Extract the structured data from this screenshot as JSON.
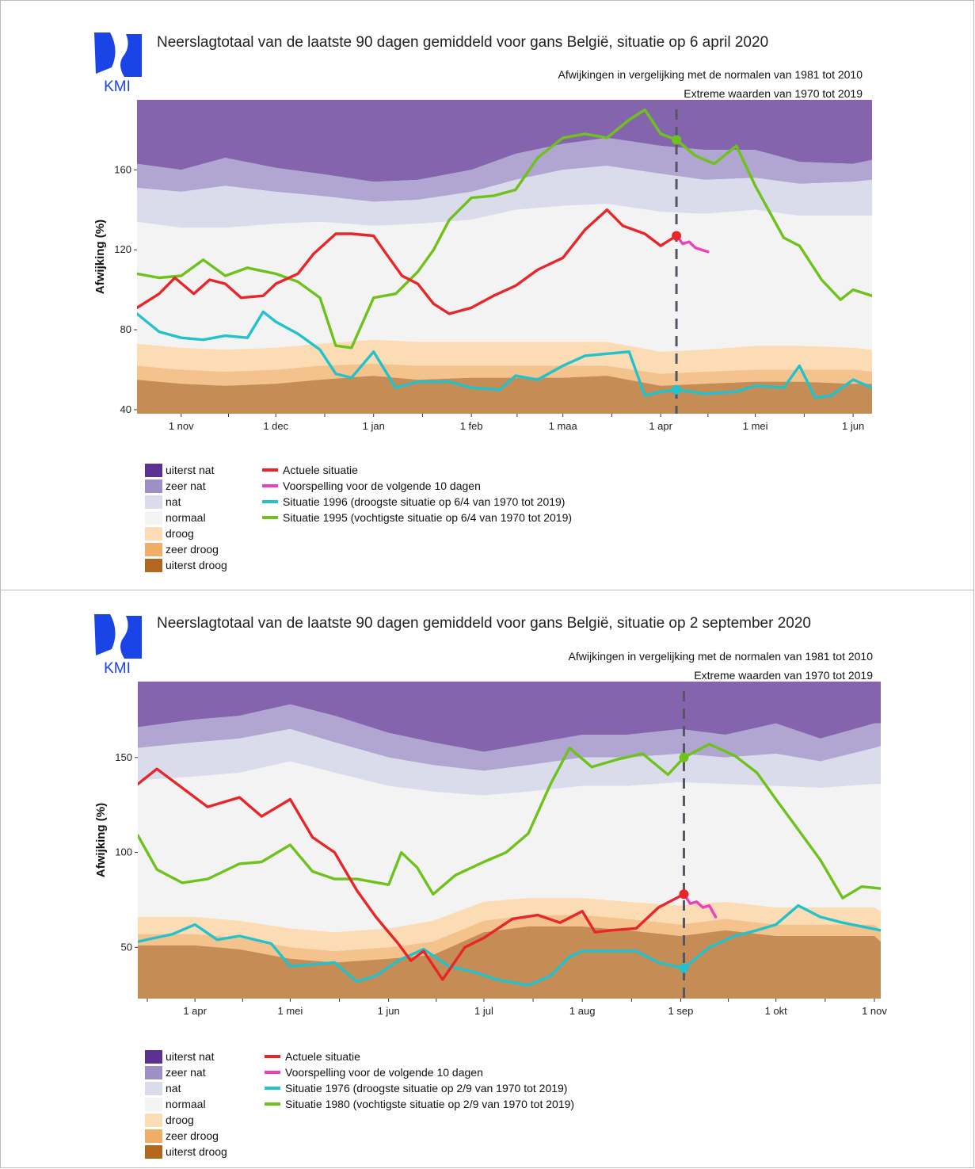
{
  "logo_text": "KMI",
  "colors": {
    "uiterst_nat": "#5b3192",
    "zeer_nat": "#9e8fc7",
    "nat": "#dadcec",
    "normaal": "#f3f3f3",
    "droog": "#fbdcb5",
    "zeer_droog": "#efad67",
    "uiterst_droog": "#b3661e",
    "actueel": "#e8262a",
    "voorspelling": "#ef3fbd",
    "droogste": "#21c2cc",
    "vochtigste": "#6ec21b",
    "today_line": "#555566"
  },
  "chart_data": [
    {
      "type": "line",
      "title": "Neerslagtotaal van de laatste 90 dagen gemiddeld voor gans België, situatie op 6 april 2020",
      "subtitle1": "Afwijkingen in vergelijking met de normalen van 1981 tot 2010",
      "subtitle2": "Extreme waarden van 1970 tot 2019",
      "ylabel": "Afwijking (%)",
      "xlabel": "",
      "ylim": [
        38,
        195
      ],
      "xlim": [
        "2019-10-18",
        "2020-06-07"
      ],
      "yticks": [
        40,
        80,
        120,
        160
      ],
      "xticks": [
        {
          "date": "2019-11-01",
          "label": "1 nov"
        },
        {
          "date": "2019-12-01",
          "label": "1 dec"
        },
        {
          "date": "2020-01-01",
          "label": "1 jan"
        },
        {
          "date": "2020-02-01",
          "label": "1 feb"
        },
        {
          "date": "2020-03-01",
          "label": "1 maa"
        },
        {
          "date": "2020-04-01",
          "label": "1 apr"
        },
        {
          "date": "2020-05-01",
          "label": "1 mei"
        },
        {
          "date": "2020-06-01",
          "label": "1 jun"
        }
      ],
      "today": "2020-04-06",
      "bands": {
        "x": [
          "2019-10-18",
          "2019-11-01",
          "2019-11-15",
          "2019-12-01",
          "2019-12-15",
          "2020-01-01",
          "2020-01-15",
          "2020-02-01",
          "2020-02-15",
          "2020-03-01",
          "2020-03-15",
          "2020-04-01",
          "2020-04-15",
          "2020-05-01",
          "2020-05-15",
          "2020-06-01",
          "2020-06-07"
        ],
        "droog_low": [
          55,
          53,
          52,
          53,
          55,
          57,
          55,
          56,
          56,
          56,
          57,
          52,
          53,
          54,
          54,
          53,
          53
        ],
        "zeer_droog_low": [
          62,
          60,
          59,
          60,
          62,
          63,
          62,
          62,
          62,
          62,
          62,
          58,
          59,
          60,
          60,
          60,
          59
        ],
        "droog_high": [
          73,
          71,
          70,
          71,
          73,
          75,
          74,
          74,
          74,
          74,
          74,
          69,
          70,
          72,
          72,
          71,
          70
        ],
        "normaal_high": [
          134,
          131,
          131,
          133,
          134,
          132,
          133,
          135,
          140,
          142,
          143,
          139,
          138,
          140,
          137,
          137,
          137
        ],
        "nat_high": [
          151,
          149,
          152,
          149,
          147,
          144,
          145,
          149,
          155,
          160,
          162,
          158,
          155,
          156,
          153,
          154,
          155
        ],
        "zeer_nat_high": [
          163,
          160,
          166,
          161,
          158,
          154,
          155,
          160,
          168,
          173,
          176,
          172,
          170,
          170,
          164,
          163,
          165
        ]
      },
      "series": [
        {
          "name": "Situatie 1996 (droogste situatie op 6/4 van 1970 tot 2019)",
          "role": "droogste",
          "x": [
            "2019-10-18",
            "2019-10-25",
            "2019-11-01",
            "2019-11-08",
            "2019-11-15",
            "2019-11-22",
            "2019-11-27",
            "2019-12-01",
            "2019-12-08",
            "2019-12-15",
            "2019-12-20",
            "2019-12-25",
            "2020-01-01",
            "2020-01-08",
            "2020-01-15",
            "2020-01-25",
            "2020-02-01",
            "2020-02-10",
            "2020-02-15",
            "2020-02-22",
            "2020-03-01",
            "2020-03-08",
            "2020-03-15",
            "2020-03-22",
            "2020-03-27",
            "2020-04-01",
            "2020-04-06",
            "2020-04-15",
            "2020-04-25",
            "2020-05-01",
            "2020-05-10",
            "2020-05-15",
            "2020-05-20",
            "2020-05-25",
            "2020-06-01",
            "2020-06-07"
          ],
          "y": [
            88,
            79,
            76,
            75,
            77,
            76,
            89,
            84,
            78,
            70,
            58,
            56,
            69,
            51,
            54,
            54,
            51,
            50,
            57,
            55,
            62,
            67,
            68,
            69,
            47,
            49,
            50,
            48,
            49,
            52,
            51,
            62,
            46,
            47,
            55,
            51
          ]
        },
        {
          "name": "Situatie 1995 (vochtigste situatie op 6/4 van 1970 tot 2019)",
          "role": "vochtigste",
          "x": [
            "2019-10-18",
            "2019-10-25",
            "2019-11-01",
            "2019-11-08",
            "2019-11-15",
            "2019-11-22",
            "2019-12-01",
            "2019-12-08",
            "2019-12-15",
            "2019-12-20",
            "2019-12-25",
            "2020-01-01",
            "2020-01-08",
            "2020-01-15",
            "2020-01-20",
            "2020-01-25",
            "2020-02-01",
            "2020-02-08",
            "2020-02-15",
            "2020-02-22",
            "2020-03-01",
            "2020-03-08",
            "2020-03-15",
            "2020-03-22",
            "2020-03-27",
            "2020-04-01",
            "2020-04-06",
            "2020-04-12",
            "2020-04-18",
            "2020-04-25",
            "2020-05-01",
            "2020-05-10",
            "2020-05-15",
            "2020-05-22",
            "2020-05-28",
            "2020-06-01",
            "2020-06-07"
          ],
          "y": [
            108,
            106,
            107,
            115,
            107,
            111,
            108,
            104,
            96,
            72,
            71,
            96,
            98,
            109,
            120,
            135,
            146,
            147,
            150,
            166,
            176,
            178,
            176,
            185,
            190,
            178,
            175,
            167,
            163,
            172,
            152,
            126,
            122,
            105,
            95,
            100,
            97
          ]
        },
        {
          "name": "Actuele situatie",
          "role": "actueel",
          "x": [
            "2019-10-18",
            "2019-10-25",
            "2019-10-30",
            "2019-11-05",
            "2019-11-10",
            "2019-11-15",
            "2019-11-20",
            "2019-11-27",
            "2019-12-01",
            "2019-12-08",
            "2019-12-13",
            "2019-12-20",
            "2019-12-25",
            "2020-01-01",
            "2020-01-05",
            "2020-01-10",
            "2020-01-15",
            "2020-01-20",
            "2020-01-25",
            "2020-02-01",
            "2020-02-08",
            "2020-02-15",
            "2020-02-22",
            "2020-03-01",
            "2020-03-08",
            "2020-03-15",
            "2020-03-20",
            "2020-03-27",
            "2020-04-01",
            "2020-04-06"
          ],
          "y": [
            91,
            98,
            106,
            98,
            105,
            103,
            96,
            97,
            103,
            108,
            118,
            128,
            128,
            127,
            118,
            107,
            103,
            93,
            88,
            91,
            97,
            102,
            110,
            116,
            130,
            140,
            132,
            128,
            122,
            127
          ]
        },
        {
          "name": "Voorspelling voor de volgende 10 dagen",
          "role": "voorspelling",
          "x": [
            "2020-04-06",
            "2020-04-08",
            "2020-04-10",
            "2020-04-12",
            "2020-04-14",
            "2020-04-16"
          ],
          "y": [
            127,
            123,
            124,
            121,
            120,
            119
          ]
        }
      ]
    },
    {
      "type": "line",
      "title": "Neerslagtotaal van de laatste 90 dagen gemiddeld voor gans België, situatie op 2 september 2020",
      "subtitle1": "Afwijkingen in vergelijking met de normalen van 1981 tot 2010",
      "subtitle2": "Extreme waarden van 1970 tot 2019",
      "ylabel": "Afwijking (%)",
      "xlabel": "",
      "ylim": [
        23,
        190
      ],
      "xlim": [
        "2020-03-14",
        "2020-11-03"
      ],
      "yticks": [
        50,
        100,
        150
      ],
      "xticks": [
        {
          "date": "2020-04-01",
          "label": "1 apr"
        },
        {
          "date": "2020-05-01",
          "label": "1 mei"
        },
        {
          "date": "2020-06-01",
          "label": "1 jun"
        },
        {
          "date": "2020-07-01",
          "label": "1 jul"
        },
        {
          "date": "2020-08-01",
          "label": "1 aug"
        },
        {
          "date": "2020-09-01",
          "label": "1 sep"
        },
        {
          "date": "2020-10-01",
          "label": "1 okt"
        },
        {
          "date": "2020-11-01",
          "label": "1 nov"
        }
      ],
      "today": "2020-09-02",
      "bands": {
        "x": [
          "2020-03-14",
          "2020-04-01",
          "2020-04-15",
          "2020-05-01",
          "2020-05-15",
          "2020-06-01",
          "2020-06-15",
          "2020-07-01",
          "2020-07-15",
          "2020-08-01",
          "2020-08-15",
          "2020-09-01",
          "2020-09-15",
          "2020-10-01",
          "2020-10-15",
          "2020-11-01",
          "2020-11-03"
        ],
        "droog_low": [
          51,
          51,
          49,
          44,
          42,
          44,
          46,
          58,
          61,
          61,
          59,
          56,
          59,
          56,
          56,
          56,
          53
        ],
        "zeer_droog_low": [
          57,
          57,
          55,
          50,
          48,
          50,
          53,
          64,
          67,
          67,
          65,
          62,
          65,
          62,
          62,
          62,
          59
        ],
        "droog_high": [
          66,
          66,
          64,
          60,
          58,
          60,
          64,
          74,
          76,
          76,
          74,
          72,
          74,
          71,
          71,
          71,
          69
        ],
        "normaal_high": [
          138,
          140,
          142,
          148,
          142,
          135,
          132,
          130,
          132,
          135,
          135,
          137,
          136,
          135,
          134,
          136,
          136
        ],
        "nat_high": [
          155,
          158,
          160,
          165,
          158,
          150,
          146,
          143,
          146,
          150,
          150,
          152,
          150,
          152,
          148,
          155,
          156
        ],
        "zeer_nat_high": [
          166,
          170,
          172,
          178,
          172,
          163,
          158,
          153,
          157,
          162,
          162,
          165,
          162,
          168,
          160,
          168,
          168
        ]
      },
      "series": [
        {
          "name": "Situatie 1976 (droogste situatie op 2/9 van 1970 tot 2019)",
          "role": "droogste",
          "x": [
            "2020-03-14",
            "2020-03-25",
            "2020-04-01",
            "2020-04-08",
            "2020-04-15",
            "2020-04-25",
            "2020-05-01",
            "2020-05-08",
            "2020-05-15",
            "2020-05-22",
            "2020-05-28",
            "2020-06-04",
            "2020-06-12",
            "2020-06-20",
            "2020-06-28",
            "2020-07-05",
            "2020-07-15",
            "2020-07-22",
            "2020-07-28",
            "2020-08-01",
            "2020-08-10",
            "2020-08-18",
            "2020-08-25",
            "2020-09-02",
            "2020-09-10",
            "2020-09-18",
            "2020-09-25",
            "2020-10-01",
            "2020-10-08",
            "2020-10-15",
            "2020-10-22",
            "2020-11-03"
          ],
          "y": [
            53,
            57,
            62,
            54,
            56,
            52,
            40,
            41,
            42,
            32,
            35,
            43,
            49,
            40,
            37,
            33,
            30,
            35,
            45,
            48,
            48,
            48,
            42,
            39,
            50,
            56,
            59,
            62,
            72,
            66,
            63,
            59
          ]
        },
        {
          "name": "Situatie 1980 (vochtigste situatie op 2/9 van 1970 tot 2019)",
          "role": "vochtigste",
          "x": [
            "2020-03-14",
            "2020-03-20",
            "2020-03-28",
            "2020-04-05",
            "2020-04-15",
            "2020-04-22",
            "2020-05-01",
            "2020-05-08",
            "2020-05-15",
            "2020-05-22",
            "2020-06-01",
            "2020-06-05",
            "2020-06-10",
            "2020-06-15",
            "2020-06-22",
            "2020-07-01",
            "2020-07-08",
            "2020-07-15",
            "2020-07-22",
            "2020-07-28",
            "2020-08-04",
            "2020-08-12",
            "2020-08-20",
            "2020-08-28",
            "2020-09-02",
            "2020-09-10",
            "2020-09-18",
            "2020-09-25",
            "2020-10-01",
            "2020-10-08",
            "2020-10-15",
            "2020-10-22",
            "2020-10-28",
            "2020-11-03"
          ],
          "y": [
            109,
            91,
            84,
            86,
            94,
            95,
            104,
            90,
            86,
            86,
            83,
            100,
            92,
            78,
            88,
            95,
            100,
            110,
            136,
            155,
            145,
            149,
            152,
            141,
            150,
            157,
            151,
            142,
            128,
            112,
            96,
            76,
            82,
            81
          ]
        },
        {
          "name": "Actuele situatie",
          "role": "actueel",
          "x": [
            "2020-03-14",
            "2020-03-20",
            "2020-03-28",
            "2020-04-05",
            "2020-04-15",
            "2020-04-22",
            "2020-05-01",
            "2020-05-08",
            "2020-05-15",
            "2020-05-22",
            "2020-05-28",
            "2020-06-04",
            "2020-06-08",
            "2020-06-12",
            "2020-06-18",
            "2020-06-25",
            "2020-07-01",
            "2020-07-10",
            "2020-07-18",
            "2020-07-25",
            "2020-08-01",
            "2020-08-05",
            "2020-08-10",
            "2020-08-18",
            "2020-08-25",
            "2020-09-02"
          ],
          "y": [
            136,
            144,
            134,
            124,
            129,
            119,
            128,
            108,
            100,
            80,
            66,
            52,
            43,
            48,
            33,
            50,
            55,
            65,
            67,
            63,
            69,
            58,
            59,
            60,
            71,
            78
          ]
        },
        {
          "name": "Voorspelling voor de volgende 10 dagen",
          "role": "voorspelling",
          "x": [
            "2020-09-02",
            "2020-09-04",
            "2020-09-06",
            "2020-09-08",
            "2020-09-10",
            "2020-09-12"
          ],
          "y": [
            78,
            73,
            74,
            71,
            72,
            66
          ]
        }
      ]
    }
  ],
  "legend": {
    "bands": [
      "uiterst nat",
      "zeer nat",
      "nat",
      "normaal",
      "droog",
      "zeer droog",
      "uiterst droog"
    ],
    "panel1_lines": [
      "Actuele situatie",
      "Voorspelling voor de volgende 10 dagen",
      "Situatie 1996 (droogste situatie op 6/4 van 1970 tot 2019)",
      "Situatie 1995 (vochtigste situatie op 6/4 van 1970 tot 2019)"
    ],
    "panel2_lines": [
      "Actuele situatie",
      "Voorspelling voor de volgende 10 dagen",
      "Situatie 1976 (droogste situatie op 2/9 van 1970 tot 2019)",
      "Situatie 1980 (vochtigste situatie op 2/9 van 1970 tot 2019)"
    ]
  }
}
